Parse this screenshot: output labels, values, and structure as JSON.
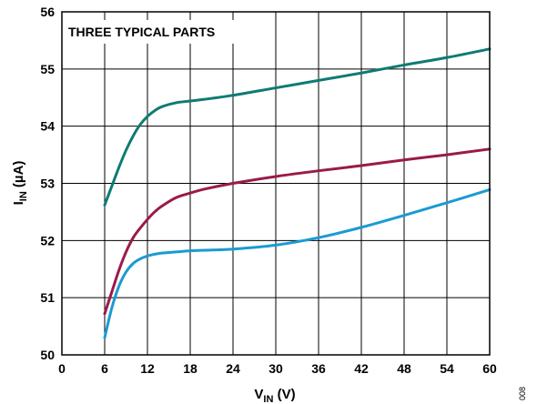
{
  "chart_data": {
    "type": "line",
    "title": "",
    "annotation": "THREE TYPICAL PARTS",
    "xlabel": {
      "main": "V",
      "sub": "IN",
      "unit": " (V)"
    },
    "ylabel": {
      "main": "I",
      "sub": "IN",
      "unit": " (µA)"
    },
    "xlim": [
      0,
      60
    ],
    "ylim": [
      50,
      56
    ],
    "xticks": [
      0,
      6,
      12,
      18,
      24,
      30,
      36,
      42,
      48,
      54,
      60
    ],
    "yticks": [
      50,
      51,
      52,
      53,
      54,
      55,
      56
    ],
    "grid": true,
    "figure_id": "008",
    "series": [
      {
        "color": "#0e7b73",
        "x": [
          6,
          7,
          8,
          9,
          10,
          11,
          12,
          13,
          14,
          16,
          18,
          20,
          24,
          30,
          36,
          42,
          48,
          54,
          60
        ],
        "y": [
          52.62,
          52.95,
          53.28,
          53.58,
          53.83,
          54.03,
          54.17,
          54.27,
          54.34,
          54.41,
          54.44,
          54.47,
          54.54,
          54.67,
          54.8,
          54.93,
          55.07,
          55.2,
          55.35
        ]
      },
      {
        "color": "#9a1b4b",
        "x": [
          6,
          7,
          8,
          9,
          10,
          11,
          12,
          13,
          14,
          16,
          18,
          20,
          24,
          30,
          36,
          42,
          48,
          54,
          60
        ],
        "y": [
          50.72,
          51.1,
          51.48,
          51.8,
          52.05,
          52.22,
          52.37,
          52.5,
          52.6,
          52.75,
          52.83,
          52.9,
          53.0,
          53.12,
          53.22,
          53.31,
          53.41,
          53.5,
          53.6
        ]
      },
      {
        "color": "#1a9bd1",
        "x": [
          6,
          7,
          8,
          9,
          10,
          11,
          12,
          13,
          14,
          16,
          18,
          20,
          24,
          30,
          36,
          42,
          48,
          54,
          60
        ],
        "y": [
          50.3,
          50.82,
          51.2,
          51.45,
          51.6,
          51.68,
          51.73,
          51.76,
          51.78,
          51.8,
          51.82,
          51.83,
          51.85,
          51.92,
          52.05,
          52.23,
          52.44,
          52.66,
          52.89
        ]
      }
    ]
  }
}
